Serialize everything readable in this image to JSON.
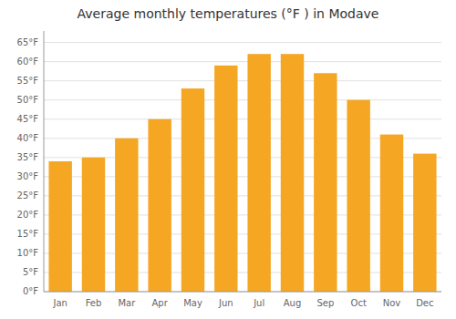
{
  "chart_data": {
    "type": "bar",
    "title": "Average monthly temperatures (°F ) in Modave",
    "categories": [
      "Jan",
      "Feb",
      "Mar",
      "Apr",
      "May",
      "Jun",
      "Jul",
      "Aug",
      "Sep",
      "Oct",
      "Nov",
      "Dec"
    ],
    "values": [
      34,
      35,
      40,
      45,
      53,
      59,
      62,
      62,
      57,
      50,
      41,
      36
    ],
    "color": "#F5A623",
    "ylim": [
      0,
      68
    ],
    "yticks": [
      {
        "value": 0,
        "label": "0°F"
      },
      {
        "value": 5,
        "label": "5°F"
      },
      {
        "value": 10,
        "label": "10°F"
      },
      {
        "value": 15,
        "label": "15°F"
      },
      {
        "value": 20,
        "label": "20°F"
      },
      {
        "value": 25,
        "label": "25°F"
      },
      {
        "value": 30,
        "label": "30°F"
      },
      {
        "value": 35,
        "label": "35°F"
      },
      {
        "value": 40,
        "label": "40°F"
      },
      {
        "value": 45,
        "label": "45°F"
      },
      {
        "value": 50,
        "label": "50°F"
      },
      {
        "value": 55,
        "label": "55°F"
      },
      {
        "value": 60,
        "label": "60°F"
      },
      {
        "value": 65,
        "label": "65°F"
      }
    ],
    "grid": true
  }
}
